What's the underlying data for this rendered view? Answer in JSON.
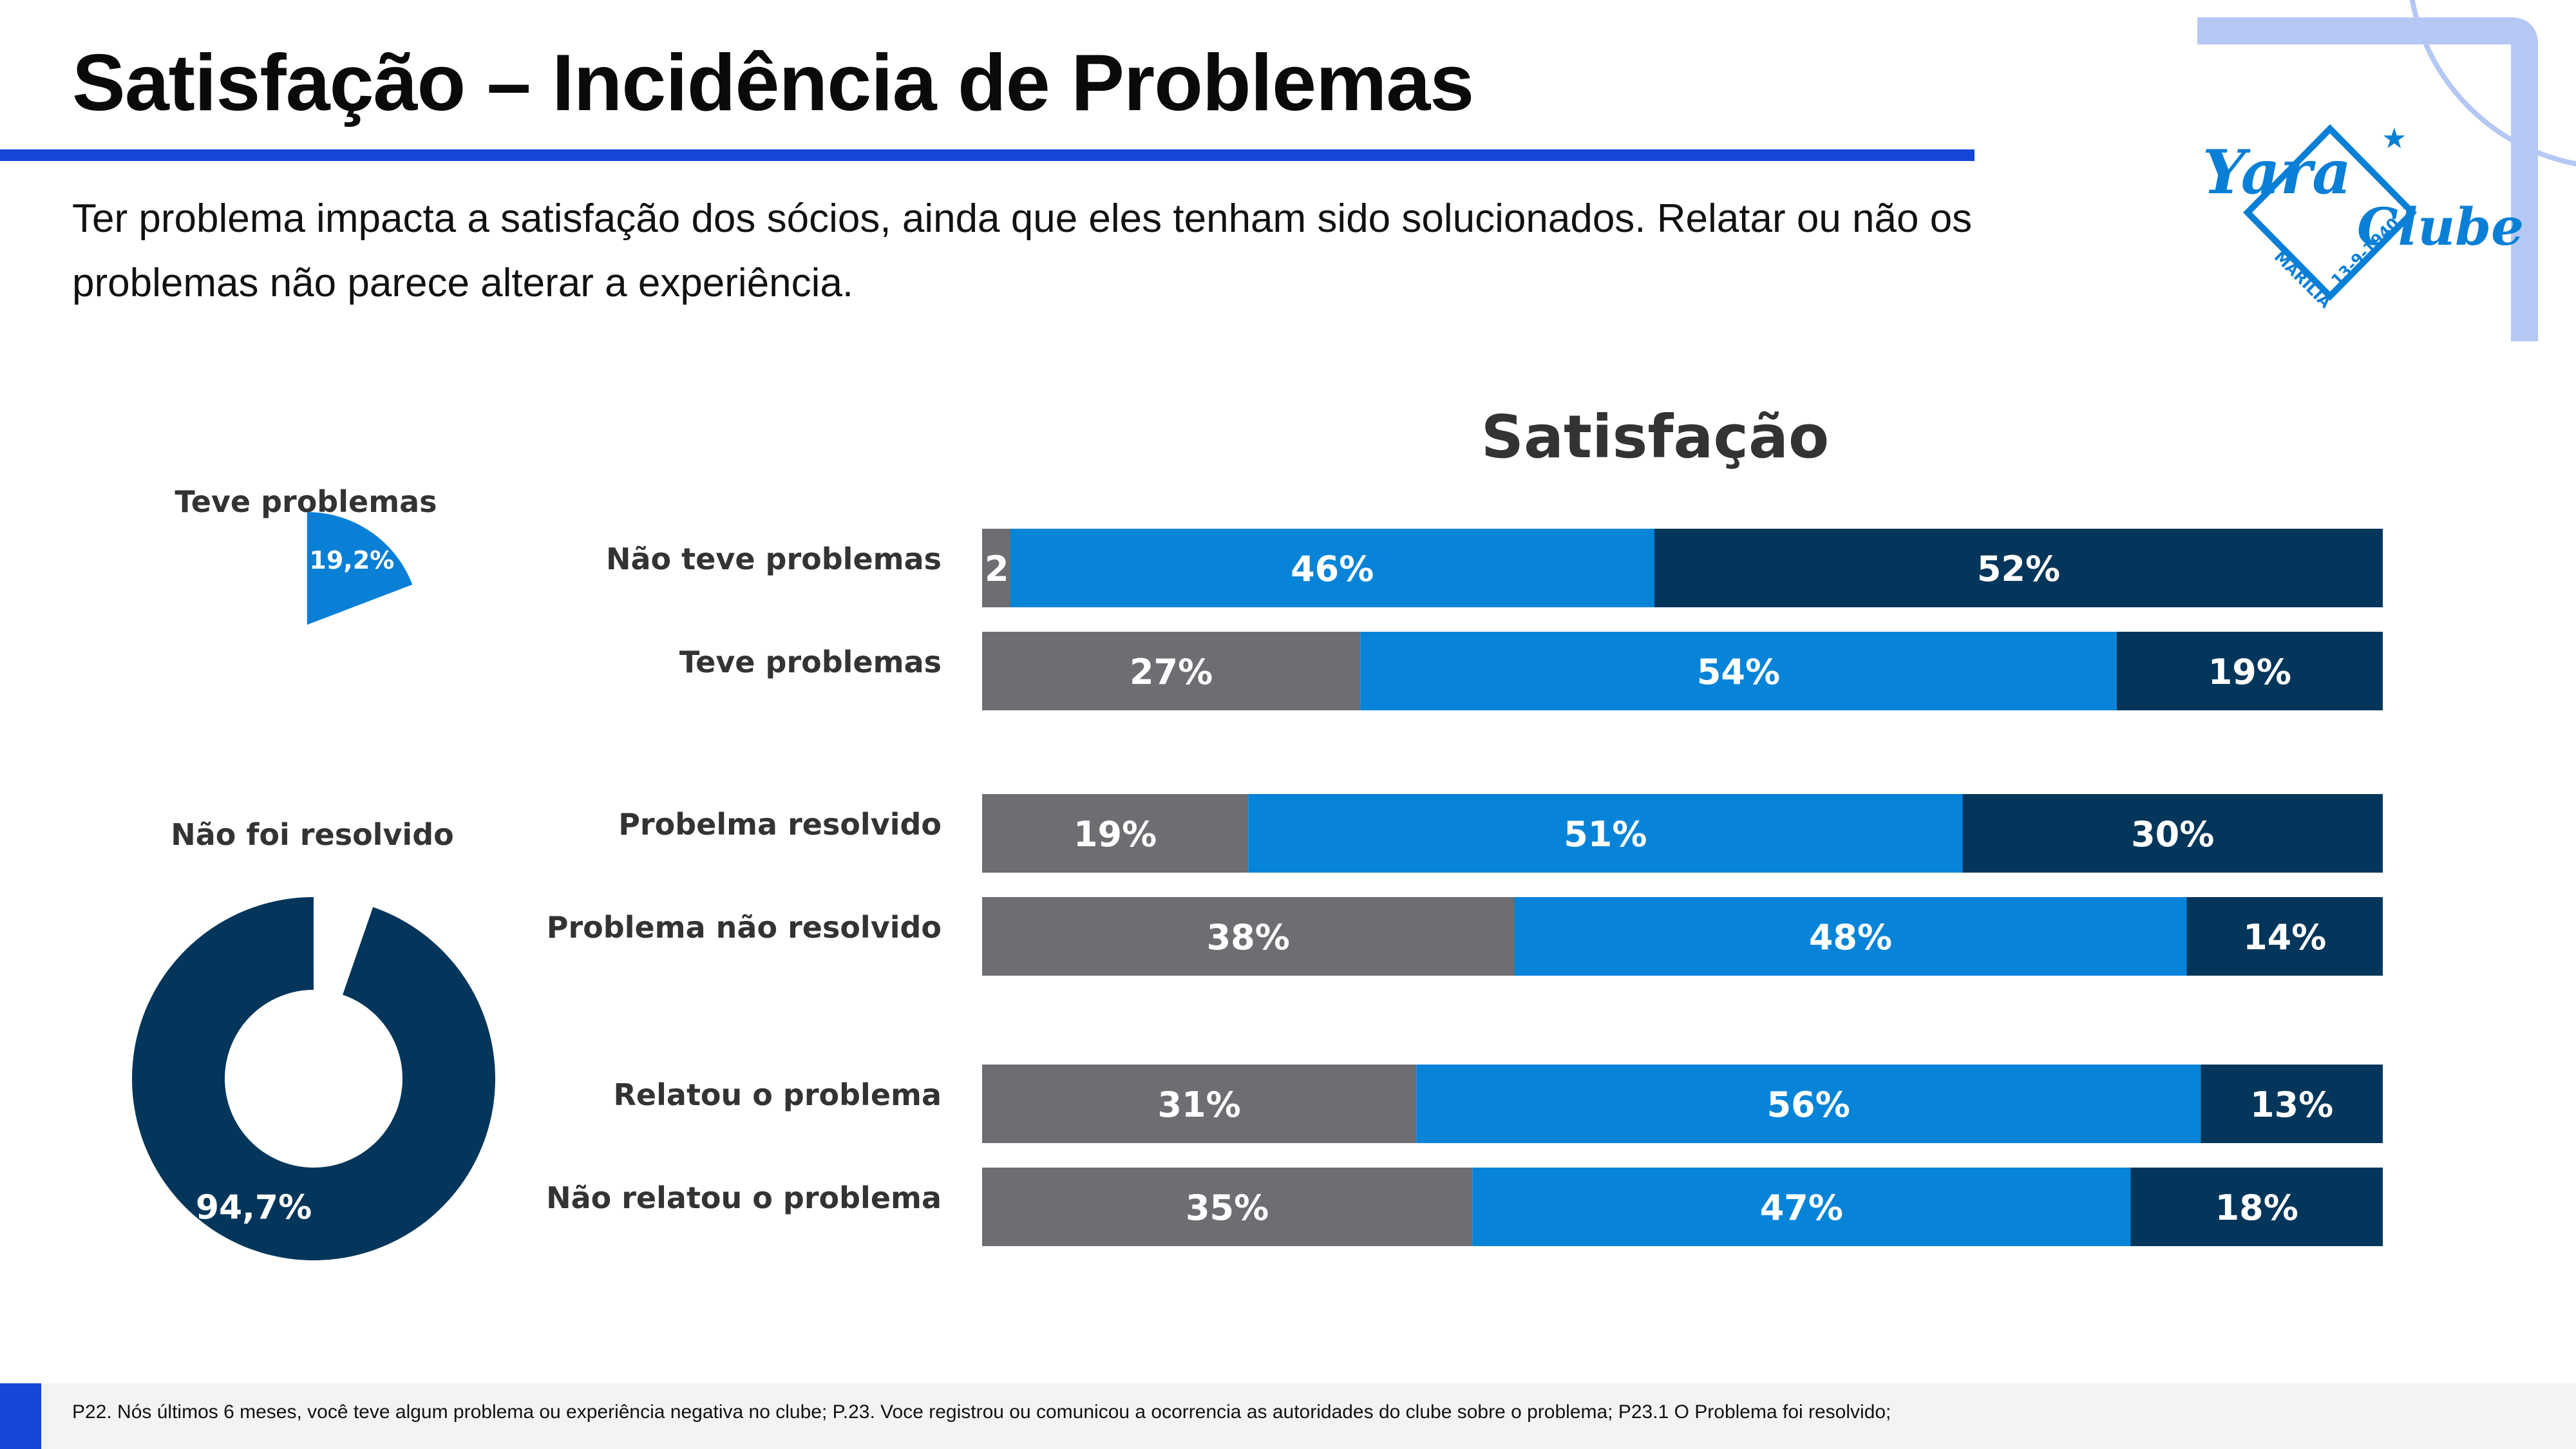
{
  "page": {
    "title": "Satisfação – Incidência de Problemas",
    "subtitle": "Ter problema impacta a satisfação dos sócios, ainda que eles tenham sido solucionados. Relatar ou não os problemas não parece alterar a experiência.",
    "footnote": "P22. Nós últimos 6 meses, você teve algum problema ou experiência negativa no clube;  P.23. Voce registrou ou comunicou a ocorrencia as autoridades do clube sobre o problema; P23.1 O Problema foi resolvido;"
  },
  "logo": {
    "name": "Yara Clube",
    "line1": "Yara",
    "line2": "Clube",
    "city": "MARÍLIA",
    "date": "13-9-1940"
  },
  "colors": {
    "title_rule": "#1646d6",
    "gray": "#6d6e72",
    "blue": "#0784d8",
    "navy": "#03365a",
    "pie_small": "#0a7fd6",
    "donut": "#03365a"
  },
  "chart_data": [
    {
      "type": "pie",
      "title": "Teve problemas",
      "values": [
        19.2
      ],
      "labels": [
        "19,2%"
      ]
    },
    {
      "type": "pie",
      "title": "Não foi resolvido",
      "values": [
        94.7
      ],
      "labels": [
        "94,7%"
      ]
    },
    {
      "type": "bar",
      "orientation": "horizontal",
      "stacked": true,
      "title": "Satisfação",
      "categories": [
        "Não teve problemas",
        "Teve problemas",
        "Probelma resolvido",
        "Problema não resolvido",
        "Relatou o problema",
        "Não relatou o problema"
      ],
      "groups": [
        [
          0,
          1
        ],
        [
          2,
          3
        ],
        [
          4,
          5
        ]
      ],
      "series": [
        {
          "color": "#6d6e72",
          "values": [
            2,
            27,
            19,
            38,
            31,
            35
          ],
          "labels": [
            "2%",
            "27%",
            "19%",
            "38%",
            "31%",
            "35%"
          ]
        },
        {
          "color": "#0784d8",
          "values": [
            46,
            54,
            51,
            48,
            56,
            47
          ],
          "labels": [
            "46%",
            "54%",
            "51%",
            "48%",
            "56%",
            "47%"
          ]
        },
        {
          "color": "#03365a",
          "values": [
            52,
            19,
            30,
            14,
            13,
            18
          ],
          "labels": [
            "52%",
            "19%",
            "30%",
            "14%",
            "13%",
            "18%"
          ]
        }
      ],
      "xlim": [
        0,
        100
      ]
    }
  ]
}
